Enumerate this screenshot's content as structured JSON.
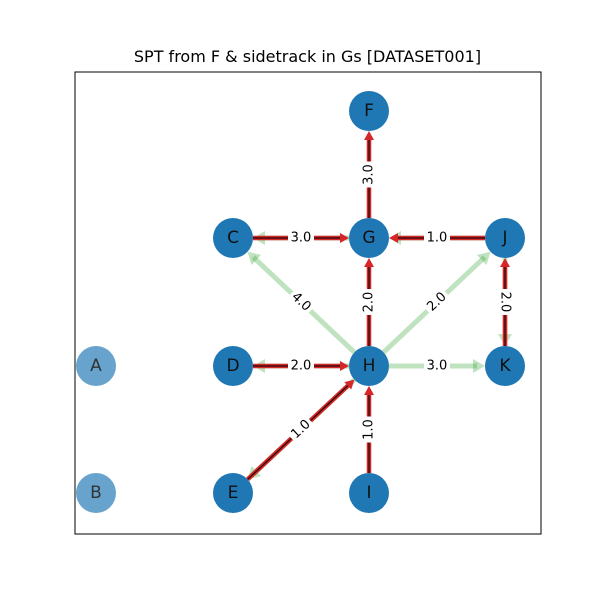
{
  "figure": {
    "title": "SPT from F & sidetrack in Gs [DATASET001]"
  },
  "colors": {
    "node_fill": "#1f77b4",
    "node_fill_faded": "#5f9ec9",
    "edge_green": "#2ca02c",
    "edge_red": "#d62728",
    "edge_black": "#000000",
    "frame": "#000000"
  },
  "nodes": [
    {
      "id": "F",
      "label": "F",
      "faded": false
    },
    {
      "id": "C",
      "label": "C",
      "faded": false
    },
    {
      "id": "G",
      "label": "G",
      "faded": false
    },
    {
      "id": "J",
      "label": "J",
      "faded": false
    },
    {
      "id": "A",
      "label": "A",
      "faded": true
    },
    {
      "id": "D",
      "label": "D",
      "faded": false
    },
    {
      "id": "H",
      "label": "H",
      "faded": false
    },
    {
      "id": "K",
      "label": "K",
      "faded": false
    },
    {
      "id": "B",
      "label": "B",
      "faded": true
    },
    {
      "id": "E",
      "label": "E",
      "faded": false
    },
    {
      "id": "I",
      "label": "I",
      "faded": false
    }
  ],
  "edges": [
    {
      "from": "H",
      "to": "C",
      "weight": "4.0",
      "highlight": false
    },
    {
      "from": "H",
      "to": "K",
      "weight": "3.0",
      "highlight": false
    },
    {
      "from": "H",
      "to": "J",
      "weight": "2.0",
      "highlight": false
    },
    {
      "from": "G",
      "to": "C",
      "weight": "3.0",
      "highlight": false
    },
    {
      "from": "J",
      "to": "G",
      "weight": "1.0",
      "highlight": false
    },
    {
      "from": "J",
      "to": "K",
      "weight": "2.0",
      "highlight": false
    },
    {
      "from": "H",
      "to": "D",
      "weight": "2.0",
      "highlight": false
    },
    {
      "from": "H",
      "to": "E",
      "weight": "1.0",
      "highlight": false
    },
    {
      "from": "G",
      "to": "F",
      "weight": "3.0",
      "highlight": true
    },
    {
      "from": "C",
      "to": "G",
      "weight": "",
      "highlight": true
    },
    {
      "from": "J",
      "to": "G",
      "weight": "",
      "highlight": true
    },
    {
      "from": "H",
      "to": "G",
      "weight": "2.0",
      "highlight": true
    },
    {
      "from": "D",
      "to": "H",
      "weight": "",
      "highlight": true
    },
    {
      "from": "E",
      "to": "H",
      "weight": "",
      "highlight": true
    },
    {
      "from": "I",
      "to": "H",
      "weight": "1.0",
      "highlight": true
    },
    {
      "from": "K",
      "to": "J",
      "weight": "",
      "highlight": true
    }
  ]
}
